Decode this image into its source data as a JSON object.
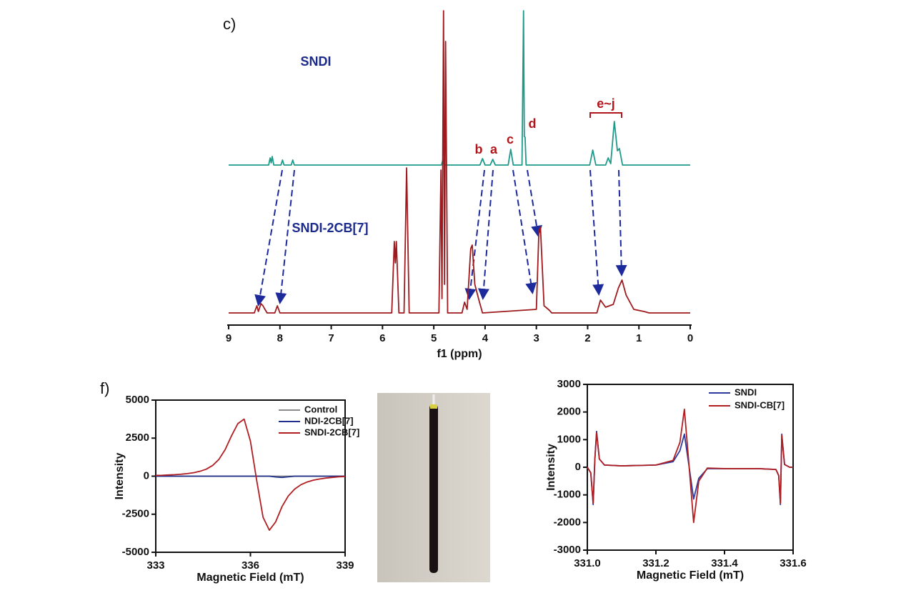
{
  "chart_data": [
    {
      "type": "line",
      "panel_label": "c)",
      "xlabel": "f1 (ppm)",
      "xlim": [
        9,
        0
      ],
      "xticks": [
        9,
        8,
        7,
        6,
        5,
        4,
        3,
        2,
        1,
        0
      ],
      "annotations": [
        {
          "text": "b"
        },
        {
          "text": "a"
        },
        {
          "text": "c"
        },
        {
          "text": "d"
        },
        {
          "text": "e~j"
        }
      ],
      "series": [
        {
          "name": "SNDI",
          "color": "#1f9a8a",
          "x": [
            9.0,
            8.22,
            8.19,
            8.17,
            8.15,
            8.12,
            7.98,
            7.95,
            7.92,
            7.78,
            7.75,
            7.72,
            4.85,
            4.82,
            4.79,
            4.1,
            4.05,
            4.0,
            3.9,
            3.85,
            3.8,
            3.55,
            3.5,
            3.45,
            3.28,
            3.25,
            3.235,
            3.22,
            3.2,
            1.96,
            1.9,
            1.84,
            1.65,
            1.6,
            1.55,
            1.48,
            1.42,
            1.38,
            1.32,
            0
          ],
          "values": [
            0,
            0,
            10,
            3,
            12,
            0,
            0,
            7,
            0,
            0,
            7,
            0,
            0,
            8,
            0,
            0,
            9,
            0,
            0,
            8,
            0,
            0,
            22,
            0,
            0,
            216,
            40,
            39,
            0,
            0,
            21,
            0,
            0,
            10,
            2,
            61,
            20,
            23,
            0,
            0
          ]
        },
        {
          "name": "SNDI-2CB[7]",
          "color": "#9e1a1e",
          "x": [
            9.0,
            8.5,
            8.45,
            8.42,
            8.37,
            8.33,
            8.3,
            8.25,
            8.1,
            8.05,
            8.0,
            5.82,
            5.77,
            5.75,
            5.73,
            5.68,
            5.58,
            5.53,
            5.48,
            4.9,
            4.86,
            4.84,
            4.81,
            4.79,
            4.77,
            4.73,
            4.45,
            4.4,
            4.35,
            4.28,
            4.25,
            4.2,
            4.12,
            4.05,
            3.0,
            2.95,
            2.92,
            2.85,
            2.75,
            2.7,
            1.82,
            1.75,
            1.65,
            1.5,
            1.4,
            1.33,
            1.25,
            1.1,
            0.9,
            0.8,
            0
          ],
          "values": [
            0,
            0,
            10,
            2,
            13,
            10,
            6,
            0,
            0,
            10,
            0,
            0,
            100,
            70,
            100,
            0,
            0,
            203,
            0,
            0,
            200,
            20,
            423,
            40,
            380,
            0,
            0,
            15,
            5,
            90,
            95,
            40,
            18,
            0,
            5,
            115,
            120,
            10,
            4,
            0,
            0,
            18,
            8,
            12,
            35,
            46,
            25,
            5,
            2,
            0,
            0
          ]
        }
      ]
    },
    {
      "type": "line",
      "panel_label": "f)",
      "xlabel": "Magnetic Field (mT)",
      "ylabel": "Intensity",
      "xlim": [
        333,
        339
      ],
      "xticks": [
        333,
        336,
        339
      ],
      "ylim": [
        -5000,
        5000
      ],
      "yticks": [
        -5000,
        -2500,
        0,
        2500,
        5000
      ],
      "x": [
        333,
        333.2,
        333.4,
        333.6,
        333.8,
        334,
        334.2,
        334.4,
        334.6,
        334.8,
        335,
        335.2,
        335.4,
        335.6,
        335.8,
        336,
        336.2,
        336.4,
        336.6,
        336.8,
        337,
        337.2,
        337.4,
        337.6,
        337.8,
        338,
        338.2,
        338.4,
        338.6,
        338.8,
        339
      ],
      "series": [
        {
          "name": "Control",
          "color": "#8a8a8a",
          "values": [
            0,
            0,
            0,
            0,
            0,
            0,
            0,
            0,
            0,
            0,
            0,
            0,
            0,
            0,
            0,
            0,
            0,
            0,
            0,
            0,
            0,
            0,
            0,
            0,
            0,
            0,
            0,
            0,
            0,
            0,
            0
          ]
        },
        {
          "name": "NDI-2CB[7]",
          "color": "#1f2f8a",
          "values": [
            0,
            0,
            0,
            0,
            0,
            0,
            0,
            0,
            0,
            0,
            0,
            0,
            0,
            0,
            0,
            0,
            0,
            0,
            0,
            -50,
            -80,
            -40,
            0,
            0,
            0,
            0,
            0,
            0,
            0,
            0,
            0
          ]
        },
        {
          "name": "SNDI-2CB[7]",
          "color": "#b01e22",
          "values": [
            50,
            60,
            80,
            100,
            130,
            170,
            230,
            320,
            460,
            700,
            1100,
            1750,
            2650,
            3450,
            3750,
            2300,
            -300,
            -2700,
            -3550,
            -3000,
            -2000,
            -1300,
            -850,
            -560,
            -380,
            -260,
            -180,
            -120,
            -80,
            -40,
            -20
          ]
        }
      ]
    },
    {
      "type": "line",
      "xlabel": "Magnetic Field (mT)",
      "ylabel": "Intensity",
      "xlim": [
        331.0,
        331.6
      ],
      "xticks": [
        {
          "value": 331,
          "label": "331.0"
        },
        331.2,
        331.4,
        331.6
      ],
      "ylim": [
        -3000,
        3000
      ],
      "yticks": [
        -3000,
        -2000,
        -1000,
        0,
        1000,
        2000,
        3000
      ],
      "x": [
        331.0,
        331.01,
        331.017,
        331.022,
        331.027,
        331.035,
        331.05,
        331.1,
        331.2,
        331.25,
        331.27,
        331.283,
        331.297,
        331.31,
        331.325,
        331.35,
        331.4,
        331.5,
        331.55,
        331.558,
        331.563,
        331.567,
        331.575,
        331.59,
        331.6
      ],
      "series": [
        {
          "name": "SNDI",
          "color": "#2c3a9e",
          "values": [
            0,
            -200,
            -1350,
            300,
            1300,
            300,
            80,
            50,
            80,
            200,
            600,
            1200,
            0,
            -1150,
            -400,
            -50,
            -50,
            -50,
            -80,
            -300,
            -1350,
            1200,
            100,
            0,
            0
          ]
        },
        {
          "name": "SNDI-CB[7]",
          "color": "#b01e22",
          "values": [
            0,
            -200,
            -1300,
            300,
            1250,
            300,
            80,
            50,
            80,
            250,
            900,
            2100,
            0,
            -2000,
            -500,
            -30,
            -50,
            -50,
            -80,
            -300,
            -1300,
            1150,
            100,
            0,
            0
          ]
        }
      ]
    }
  ]
}
